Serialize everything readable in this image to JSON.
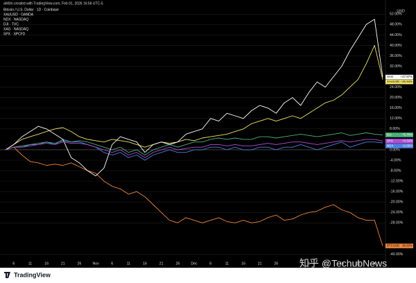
{
  "chart_data": {
    "type": "line",
    "caption": "ahl0m created with TradingView.com, Feb 01, 2026 16:56 UTC-5",
    "y_axis_label": "USD",
    "brand": "TradingView",
    "watermark": "知乎 @TechubNews",
    "categories": [
      null,
      "6",
      null,
      "11",
      null,
      "16",
      null,
      "21",
      null,
      "26",
      null,
      "Nov",
      null,
      "6",
      null,
      "11",
      null,
      "16",
      null,
      "21",
      null,
      "26",
      null,
      "Dec",
      null,
      "6",
      null,
      "11",
      null,
      "16",
      null,
      "21",
      null,
      "26",
      null,
      null,
      null,
      "6",
      null,
      "11",
      null,
      "16",
      null,
      "21",
      null,
      "26",
      null
    ],
    "ylim": [
      -42,
      55
    ],
    "yticks": [
      {
        "value": 52,
        "label": "52.00%"
      },
      {
        "value": 48,
        "label": "48.00%"
      },
      {
        "value": 44,
        "label": "44.00%"
      },
      {
        "value": 40,
        "label": "40.00%"
      },
      {
        "value": 36,
        "label": "36.00%"
      },
      {
        "value": 32,
        "label": "32.00%"
      },
      {
        "value": 24,
        "label": "24.00%"
      },
      {
        "value": 20,
        "label": "20.00%"
      },
      {
        "value": 16,
        "label": "16.00%"
      },
      {
        "value": 12,
        "label": "12.00%"
      },
      {
        "value": 8,
        "label": "8.00%"
      },
      {
        "value": 0,
        "label": "0.00%"
      },
      {
        "value": -4,
        "label": "-4.00%"
      },
      {
        "value": -8,
        "label": "-8.00%"
      },
      {
        "value": -12,
        "label": "-12.00%"
      },
      {
        "value": -16,
        "label": "-16.00%"
      },
      {
        "value": -20,
        "label": "-20.00%"
      },
      {
        "value": -24,
        "label": "-24.00%"
      },
      {
        "value": -28,
        "label": "-28.00%"
      },
      {
        "value": -40,
        "label": "-40.00%"
      }
    ],
    "grid": true,
    "series": [
      {
        "name": "Bitcoin / U.S. Dollar · 1D · Coinbase",
        "tag": "BTCUSD",
        "color": "#f0883e",
        "values": [
          0,
          1,
          -2,
          -4.5,
          -5,
          -6,
          -5.5,
          -6,
          -5,
          -6.5,
          -8,
          -9,
          -12,
          -14,
          -15,
          -17,
          -16,
          -18,
          -21,
          -24,
          -27,
          -28,
          -26,
          -27,
          -28,
          -27,
          -26,
          -27.5,
          -28,
          -27,
          -28,
          -27.5,
          -26,
          -25,
          -27,
          -26.5,
          -25,
          -24,
          -23.5,
          -22,
          -21,
          -23,
          -24,
          -26,
          -27,
          -27,
          -36.83
        ],
        "value_labels": [
          null,
          null,
          null,
          null,
          null,
          null,
          null,
          null,
          null,
          null,
          null,
          null,
          null,
          null,
          null,
          null,
          null,
          null,
          null,
          null,
          null,
          null,
          null,
          null,
          null,
          null,
          null,
          null,
          null,
          null,
          null,
          null,
          null,
          null,
          null,
          null,
          null,
          null,
          null,
          null,
          null,
          null,
          null,
          null,
          null,
          null,
          "-36.83%"
        ]
      },
      {
        "name": "XAUUSD · OANDA",
        "tag": "XAUUSD",
        "color": "#f2e46a",
        "values": [
          0,
          2,
          4,
          5,
          6,
          7,
          8,
          8.5,
          7,
          5,
          4,
          3.5,
          3,
          4,
          3.5,
          3,
          2,
          1,
          2,
          3,
          2.5,
          3,
          4,
          3.5,
          4.5,
          5,
          5.5,
          6,
          7,
          8,
          10,
          11,
          12,
          11,
          12,
          13,
          12,
          14,
          16,
          18,
          19,
          21,
          24,
          27,
          33,
          40,
          26.94
        ],
        "value_labels": [
          null,
          null,
          null,
          null,
          null,
          null,
          null,
          null,
          null,
          null,
          null,
          null,
          null,
          null,
          null,
          null,
          null,
          null,
          null,
          null,
          null,
          null,
          null,
          null,
          null,
          null,
          null,
          null,
          null,
          null,
          null,
          null,
          null,
          null,
          null,
          null,
          null,
          null,
          null,
          null,
          null,
          null,
          null,
          null,
          null,
          null,
          "+26.94%"
        ]
      },
      {
        "name": "NDX · NASDAQ",
        "tag": "NDX",
        "color": "#4f7fe0",
        "values": [
          0,
          1,
          1,
          2,
          2,
          3,
          2,
          4,
          3,
          3,
          2,
          1,
          -1,
          -2,
          -1,
          -3,
          -2,
          -4,
          -2,
          -1,
          0,
          -1,
          -1,
          0,
          0,
          1,
          1,
          0,
          1,
          0,
          0,
          1,
          1,
          0,
          1,
          1,
          2,
          1,
          0,
          1,
          2,
          3,
          1,
          2,
          3,
          3,
          2.65
        ],
        "value_labels": [
          null,
          null,
          null,
          null,
          null,
          null,
          null,
          null,
          null,
          null,
          null,
          null,
          null,
          null,
          null,
          null,
          null,
          null,
          null,
          null,
          null,
          null,
          null,
          null,
          null,
          null,
          null,
          null,
          null,
          null,
          null,
          null,
          null,
          null,
          null,
          null,
          null,
          null,
          null,
          null,
          null,
          null,
          null,
          null,
          null,
          null,
          "+2.65%"
        ]
      },
      {
        "name": "DJI · TVC",
        "tag": "DJI",
        "color": "#4caf7a",
        "values": [
          0,
          1,
          1.5,
          2,
          2.5,
          3,
          2.5,
          3.5,
          3,
          3.5,
          3,
          2,
          1,
          0,
          1,
          -1,
          0,
          -2,
          0,
          1,
          2,
          1,
          2,
          3,
          3,
          4,
          4.5,
          4,
          4.5,
          4,
          4,
          5,
          5,
          4.5,
          5,
          5.5,
          6,
          5.5,
          5,
          5.5,
          6,
          6.5,
          5.5,
          6,
          6.5,
          6,
          5.7
        ],
        "value_labels": [
          null,
          null,
          null,
          null,
          null,
          null,
          null,
          null,
          null,
          null,
          null,
          null,
          null,
          null,
          null,
          null,
          null,
          null,
          null,
          null,
          null,
          null,
          null,
          null,
          null,
          null,
          null,
          null,
          null,
          null,
          null,
          null,
          null,
          null,
          null,
          null,
          null,
          null,
          null,
          null,
          null,
          null,
          null,
          null,
          null,
          null,
          "+5.70%"
        ]
      },
      {
        "name": "XAG · NASDAQ",
        "tag": "XAG",
        "color": "#ffffff",
        "values": [
          0,
          2,
          5,
          7,
          9,
          8,
          6,
          4,
          -3,
          -5,
          -8,
          -10,
          -7,
          2,
          5,
          4,
          3,
          -1,
          2,
          3,
          2,
          3,
          6,
          7,
          8,
          12,
          11,
          14,
          13,
          12,
          15,
          17,
          16,
          14,
          18,
          20,
          17,
          22,
          26,
          24,
          28,
          32,
          38,
          43,
          48,
          50,
          27.87
        ],
        "value_labels": [
          null,
          null,
          null,
          null,
          null,
          null,
          null,
          null,
          null,
          null,
          null,
          null,
          null,
          null,
          null,
          null,
          null,
          null,
          null,
          null,
          null,
          null,
          null,
          null,
          null,
          null,
          null,
          null,
          null,
          null,
          null,
          null,
          null,
          null,
          null,
          null,
          null,
          null,
          null,
          null,
          null,
          null,
          null,
          null,
          null,
          null,
          "+27.87%"
        ]
      },
      {
        "name": "SPX · SPCFD",
        "tag": "SPX",
        "color": "#b04fd8",
        "values": [
          0,
          1,
          1,
          1.5,
          2,
          2.5,
          2,
          3,
          2.5,
          2.5,
          2,
          1,
          0,
          -1,
          0,
          -2,
          -1,
          -3,
          -1,
          0,
          1,
          0,
          0.5,
          1,
          1,
          2,
          2,
          1.5,
          2,
          1.5,
          1.5,
          2,
          2.5,
          2,
          2.5,
          3,
          3,
          2.5,
          2,
          2.5,
          3,
          3.5,
          3,
          3.5,
          4,
          4,
          3.33
        ],
        "value_labels": [
          null,
          null,
          null,
          null,
          null,
          null,
          null,
          null,
          null,
          null,
          null,
          null,
          null,
          null,
          null,
          null,
          null,
          null,
          null,
          null,
          null,
          null,
          null,
          null,
          null,
          null,
          null,
          null,
          null,
          null,
          null,
          null,
          null,
          null,
          null,
          null,
          null,
          null,
          null,
          null,
          null,
          null,
          null,
          null,
          null,
          null,
          "+3.33%"
        ]
      }
    ]
  }
}
